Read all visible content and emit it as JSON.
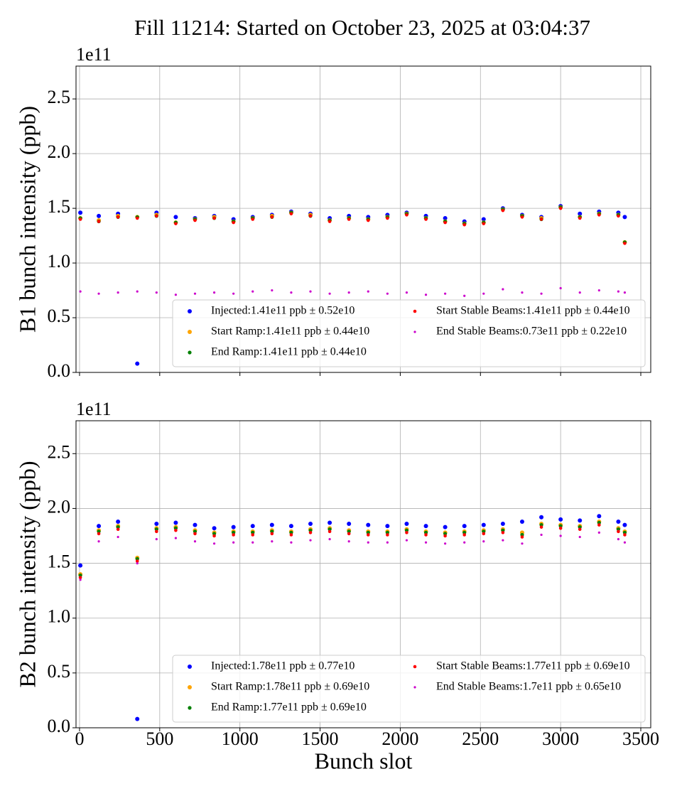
{
  "title": "Fill 11214: Started on October 23, 2025 at 03:04:37",
  "chart_data": [
    {
      "type": "scatter",
      "ylabel": "B1 bunch intensity (ppb)",
      "offset_label": "1e11",
      "xlim": [
        -22,
        3562
      ],
      "ylim": [
        0,
        2.8
      ],
      "xticks": [
        0,
        500,
        1000,
        1500,
        2000,
        2500,
        3000,
        3500
      ],
      "xtick_labels": false,
      "yticks": [
        {
          "value": 0,
          "label": "0.0"
        },
        0.5,
        {
          "value": 1,
          "label": "1.0"
        },
        1.5,
        {
          "value": 2,
          "label": "2.0"
        },
        2.5
      ],
      "grid": true,
      "legend_loc": "lower right",
      "legend_ncol": 2,
      "x": [
        5,
        120,
        240,
        360,
        480,
        600,
        720,
        840,
        960,
        1080,
        1200,
        1320,
        1440,
        1560,
        1680,
        1800,
        1920,
        2040,
        2160,
        2280,
        2400,
        2520,
        2640,
        2760,
        2880,
        3000,
        3120,
        3240,
        3360,
        3400
      ],
      "series": [
        {
          "name": "Injected:1.41e11 ppb ± 0.52e10",
          "color": "#0000ff",
          "values": [
            1.46,
            1.43,
            1.45,
            0.08,
            1.46,
            1.42,
            1.41,
            1.43,
            1.4,
            1.42,
            1.44,
            1.47,
            1.45,
            1.41,
            1.43,
            1.42,
            1.44,
            1.46,
            1.43,
            1.41,
            1.38,
            1.4,
            1.5,
            1.44,
            1.42,
            1.52,
            1.45,
            1.47,
            1.46,
            1.42
          ]
        },
        {
          "name": "Start Ramp:1.41e11 ppb ± 0.44e10",
          "color": "#ffa500",
          "values": [
            1.41,
            1.39,
            1.43,
            1.42,
            1.44,
            1.37,
            1.4,
            1.42,
            1.38,
            1.41,
            1.43,
            1.46,
            1.44,
            1.39,
            1.41,
            1.4,
            1.42,
            1.45,
            1.41,
            1.38,
            1.36,
            1.37,
            1.49,
            1.43,
            1.41,
            1.51,
            1.42,
            1.45,
            1.44,
            1.19
          ]
        },
        {
          "name": "End Ramp:1.41e11 ppb ± 0.44e10",
          "color": "#008000",
          "values": [
            1.41,
            1.38,
            1.42,
            1.42,
            1.43,
            1.37,
            1.4,
            1.41,
            1.38,
            1.41,
            1.42,
            1.46,
            1.43,
            1.39,
            1.41,
            1.4,
            1.42,
            1.45,
            1.41,
            1.38,
            1.36,
            1.37,
            1.49,
            1.43,
            1.4,
            1.51,
            1.42,
            1.45,
            1.44,
            1.19
          ]
        },
        {
          "name": "Start Stable Beams:1.41e11 ppb ± 0.44e10",
          "color": "#ff0000",
          "values": [
            1.4,
            1.38,
            1.42,
            1.41,
            1.43,
            1.36,
            1.39,
            1.41,
            1.37,
            1.4,
            1.42,
            1.45,
            1.43,
            1.38,
            1.4,
            1.39,
            1.41,
            1.44,
            1.4,
            1.37,
            1.35,
            1.36,
            1.48,
            1.42,
            1.4,
            1.5,
            1.41,
            1.44,
            1.43,
            1.18
          ]
        },
        {
          "name": "End Stable Beams:0.73e11 ppb ± 0.22e10",
          "color": "#cc00cc",
          "values": [
            0.74,
            0.72,
            0.73,
            0.74,
            0.73,
            0.71,
            0.72,
            0.73,
            0.72,
            0.74,
            0.75,
            0.73,
            0.74,
            0.72,
            0.73,
            0.74,
            0.72,
            0.73,
            0.71,
            0.72,
            0.7,
            0.72,
            0.76,
            0.73,
            0.72,
            0.77,
            0.73,
            0.75,
            0.74,
            0.73
          ]
        }
      ]
    },
    {
      "type": "scatter",
      "ylabel": "B2 bunch intensity (ppb)",
      "offset_label": "1e11",
      "xlabel": "Bunch slot",
      "xlim": [
        -22,
        3562
      ],
      "ylim": [
        0,
        2.8
      ],
      "xticks": [
        0,
        500,
        1000,
        1500,
        2000,
        2500,
        3000,
        3500
      ],
      "xtick_labels": true,
      "yticks": [
        {
          "value": 0,
          "label": "0.0"
        },
        0.5,
        {
          "value": 1,
          "label": "1.0"
        },
        1.5,
        {
          "value": 2,
          "label": "2.0"
        },
        2.5
      ],
      "grid": true,
      "legend_loc": "lower right",
      "legend_ncol": 2,
      "x": [
        5,
        120,
        240,
        360,
        480,
        600,
        720,
        840,
        960,
        1080,
        1200,
        1320,
        1440,
        1560,
        1680,
        1800,
        1920,
        2040,
        2160,
        2280,
        2400,
        2520,
        2640,
        2760,
        2880,
        3000,
        3120,
        3240,
        3360,
        3400
      ],
      "series": [
        {
          "name": "Injected:1.78e11 ppb ± 0.77e10",
          "color": "#0000ff",
          "values": [
            1.48,
            1.84,
            1.88,
            0.08,
            1.86,
            1.87,
            1.85,
            1.82,
            1.83,
            1.84,
            1.85,
            1.84,
            1.86,
            1.87,
            1.86,
            1.85,
            1.84,
            1.86,
            1.84,
            1.83,
            1.84,
            1.85,
            1.86,
            1.88,
            1.92,
            1.9,
            1.89,
            1.93,
            1.88,
            1.85
          ]
        },
        {
          "name": "Start Ramp:1.78e11 ppb ± 0.69e10",
          "color": "#ffa500",
          "values": [
            1.4,
            1.8,
            1.84,
            1.55,
            1.82,
            1.83,
            1.8,
            1.78,
            1.79,
            1.79,
            1.8,
            1.79,
            1.81,
            1.82,
            1.8,
            1.79,
            1.79,
            1.81,
            1.79,
            1.78,
            1.79,
            1.8,
            1.81,
            1.78,
            1.86,
            1.85,
            1.84,
            1.88,
            1.82,
            1.79
          ]
        },
        {
          "name": "End Ramp:1.77e11 ppb ± 0.69e10",
          "color": "#008000",
          "values": [
            1.39,
            1.79,
            1.83,
            1.54,
            1.81,
            1.82,
            1.79,
            1.77,
            1.78,
            1.78,
            1.79,
            1.78,
            1.8,
            1.81,
            1.79,
            1.78,
            1.78,
            1.8,
            1.78,
            1.77,
            1.78,
            1.79,
            1.8,
            1.76,
            1.85,
            1.84,
            1.83,
            1.87,
            1.81,
            1.78
          ]
        },
        {
          "name": "Start Stable Beams:1.77e11 ppb ± 0.69e10",
          "color": "#ff0000",
          "values": [
            1.37,
            1.77,
            1.81,
            1.52,
            1.79,
            1.8,
            1.77,
            1.75,
            1.76,
            1.76,
            1.77,
            1.76,
            1.78,
            1.79,
            1.77,
            1.76,
            1.76,
            1.78,
            1.76,
            1.75,
            1.76,
            1.77,
            1.78,
            1.74,
            1.83,
            1.82,
            1.81,
            1.85,
            1.79,
            1.76
          ]
        },
        {
          "name": "End Stable Beams:1.7e11 ppb ± 0.65e10",
          "color": "#cc00cc",
          "values": [
            1.35,
            1.7,
            1.74,
            1.5,
            1.72,
            1.73,
            1.7,
            1.68,
            1.69,
            1.69,
            1.7,
            1.69,
            1.71,
            1.72,
            1.7,
            1.69,
            1.69,
            1.71,
            1.69,
            1.68,
            1.69,
            1.7,
            1.71,
            1.68,
            1.76,
            1.75,
            1.74,
            1.78,
            1.72,
            1.69
          ]
        }
      ]
    }
  ]
}
